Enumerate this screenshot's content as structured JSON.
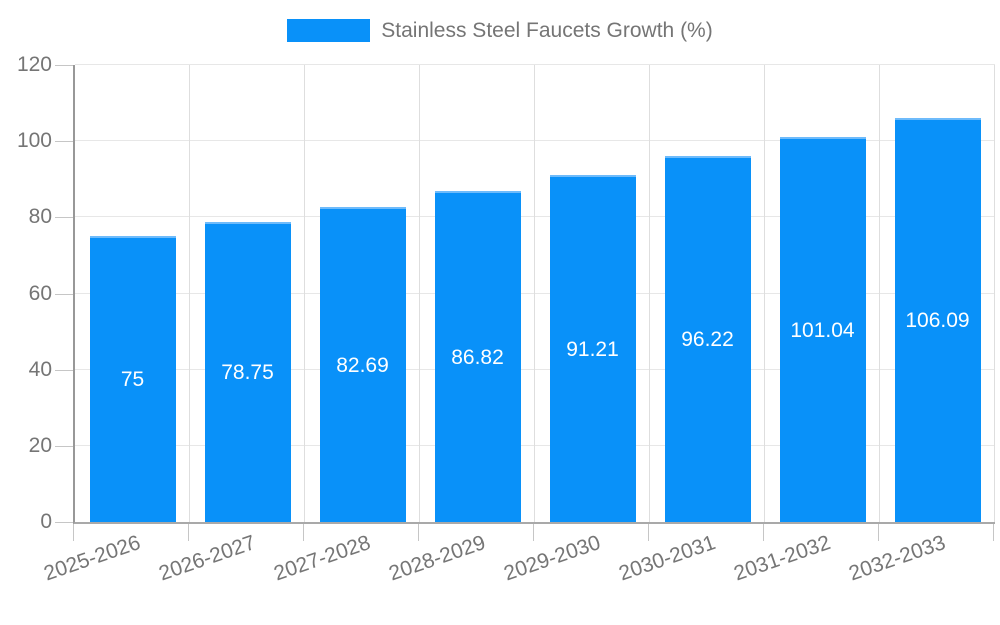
{
  "chart_data": {
    "type": "bar",
    "title": "",
    "xlabel": "",
    "ylabel": "",
    "legend_position": "top",
    "grid": true,
    "categories": [
      "2025-2026",
      "2026-2027",
      "2027-2028",
      "2028-2029",
      "2029-2030",
      "2030-2031",
      "2031-2032",
      "2032-2033"
    ],
    "series": [
      {
        "name": "Stainless Steel Faucets Growth (%)",
        "values": [
          75,
          78.75,
          82.69,
          86.82,
          91.21,
          96.22,
          101.04,
          106.09
        ]
      }
    ],
    "value_labels": [
      "75",
      "78.75",
      "82.69",
      "86.82",
      "91.21",
      "96.22",
      "101.04",
      "106.09"
    ],
    "ylim": [
      0,
      120
    ],
    "yticks": [
      0,
      20,
      40,
      60,
      80,
      100,
      120
    ],
    "colors": {
      "bar": "#0991f9",
      "bar_edge": "#6ebbfb",
      "grid": "#e7e7e7",
      "grid_vertical": "#dedede",
      "tick": "#c6c6c6",
      "axis": "#9e9e9e",
      "axis_label": "#757575",
      "value_label": "#ffffff",
      "background": "#ffffff"
    }
  }
}
